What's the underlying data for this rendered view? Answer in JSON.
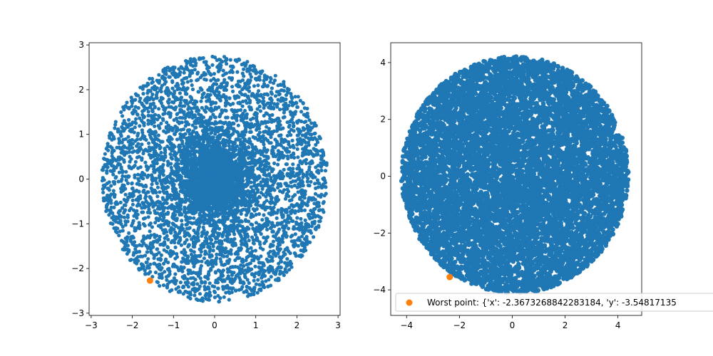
{
  "chart_data": [
    {
      "type": "scatter",
      "xlim": [
        -3.05,
        3.05
      ],
      "ylim": [
        -3.05,
        3.05
      ],
      "xticks": [
        -3,
        -2,
        -1,
        0,
        1,
        2,
        3
      ],
      "yticks": [
        -3,
        -2,
        -1,
        0,
        1,
        2,
        3
      ],
      "xtick_labels": [
        "−3",
        "−2",
        "−1",
        "0",
        "1",
        "2",
        "3"
      ],
      "ytick_labels": [
        "−3",
        "−2",
        "−1",
        "0",
        "1",
        "2",
        "3"
      ],
      "grid": false,
      "series": [
        {
          "color": "#1f77b4",
          "distribution": "roughly uniform-radius disk of points, radius ~2.7, denser near center",
          "approx_count": 8000,
          "radius": 2.75
        },
        {
          "color": "#ff7f0e",
          "points": [
            {
              "x": -1.57,
              "y": -2.27
            }
          ]
        }
      ]
    },
    {
      "type": "scatter",
      "xlim": [
        -4.6,
        4.9
      ],
      "ylim": [
        -4.9,
        4.7
      ],
      "xticks": [
        -4,
        -2,
        0,
        2,
        4
      ],
      "yticks": [
        -4,
        -2,
        0,
        2,
        4
      ],
      "xtick_labels": [
        "−4",
        "−2",
        "0",
        "2",
        "4"
      ],
      "ytick_labels": [
        "−4",
        "−2",
        "0",
        "2",
        "4"
      ],
      "grid": false,
      "legend": {
        "placement": "bottom-left, extends past right edge",
        "entries": [
          {
            "label": "Worst point: {'x': -2.3673268842283184, 'y': -3.54817135",
            "color": "#ff7f0e"
          }
        ]
      },
      "series": [
        {
          "color": "#1f77b4",
          "distribution": "filled disk of points, radius ~4.3, centered near (0.1, 0)",
          "approx_count": 8000,
          "radius": 4.3
        },
        {
          "color": "#ff7f0e",
          "points": [
            {
              "x": -2.3673268842283184,
              "y": -3.54817135
            }
          ]
        }
      ]
    }
  ]
}
